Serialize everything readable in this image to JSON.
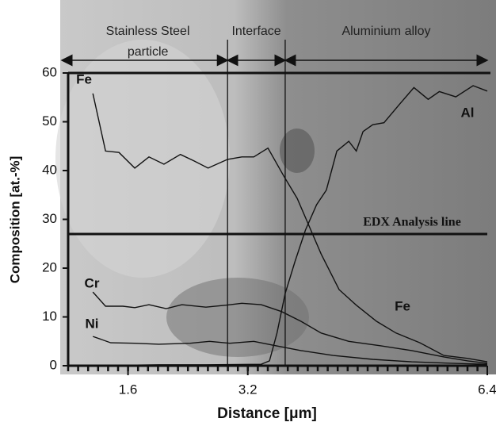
{
  "chart_data": {
    "type": "line",
    "ylabel": "Composition [at.-%]",
    "xlabel": "Distance [μm]",
    "xlim": [
      0.8,
      6.4
    ],
    "xticks": [
      1.6,
      3.2,
      6.4
    ],
    "ylim": [
      0,
      60
    ],
    "yticks": [
      0,
      10,
      20,
      30,
      40,
      50,
      60
    ],
    "regions": [
      {
        "label": [
          "Stainless Steel",
          "particle"
        ],
        "from": 0.8,
        "to": 2.93
      },
      {
        "label": [
          "Interface"
        ],
        "from": 2.93,
        "to": 3.7
      },
      {
        "label": [
          "Aluminium alloy"
        ],
        "from": 3.7,
        "to": 6.4
      }
    ],
    "analysis_line": {
      "label": "EDX Analysis line",
      "y": 27
    },
    "series": [
      {
        "name": "Fe",
        "color": "#111111",
        "x": [
          1.13,
          1.3,
          1.48,
          1.69,
          1.88,
          2.08,
          2.3,
          2.48,
          2.67,
          2.93,
          3.12,
          3.28,
          3.47,
          3.68,
          3.86,
          4.02,
          4.18,
          4.42,
          4.65,
          4.92,
          5.18,
          5.5,
          5.82,
          6.14,
          6.4
        ],
        "values": [
          55.8,
          44,
          43.7,
          40.5,
          42.8,
          41.3,
          43.3,
          42,
          40.5,
          42.3,
          42.8,
          42.8,
          44.6,
          38.9,
          34.3,
          28.6,
          22.9,
          15.6,
          12.4,
          9.1,
          6.7,
          4.7,
          2.1,
          1.5,
          0.8
        ]
      },
      {
        "name": "Al",
        "color": "#111111",
        "x": [
          1.13,
          2.01,
          2.64,
          3.38,
          3.49,
          3.59,
          3.7,
          3.83,
          3.97,
          4.12,
          4.25,
          4.39,
          4.55,
          4.65,
          4.74,
          4.87,
          5.02,
          5.24,
          5.42,
          5.61,
          5.76,
          5.98,
          6.21,
          6.4
        ],
        "values": [
          0,
          0.2,
          0.2,
          0.3,
          1,
          6.7,
          14.8,
          21.3,
          27.8,
          33,
          36,
          44,
          46,
          44,
          48,
          49.4,
          49.8,
          53.8,
          57,
          54.6,
          56.2,
          55.1,
          57.4,
          56.3
        ]
      },
      {
        "name": "Cr",
        "color": "#111111",
        "x": [
          1.13,
          1.3,
          1.53,
          1.69,
          1.88,
          2.11,
          2.32,
          2.64,
          2.91,
          3.12,
          3.38,
          3.65,
          3.91,
          4.18,
          4.55,
          4.97,
          5.39,
          5.82,
          6.14,
          6.4
        ],
        "values": [
          15.1,
          12.2,
          12.2,
          11.9,
          12.5,
          11.7,
          12.5,
          12,
          12.4,
          12.8,
          12.5,
          11.1,
          9.1,
          6.7,
          5,
          4.1,
          3.1,
          1.8,
          1,
          0.5
        ]
      },
      {
        "name": "Ni",
        "color": "#111111",
        "x": [
          1.13,
          1.37,
          1.69,
          2.01,
          2.43,
          2.69,
          2.96,
          3.28,
          3.54,
          3.91,
          4.34,
          4.87,
          5.39,
          5.92,
          6.4
        ],
        "values": [
          6,
          4.7,
          4.6,
          4.4,
          4.6,
          5,
          4.6,
          5,
          4.2,
          3.1,
          2.1,
          1.3,
          0.8,
          0.5,
          0.3
        ]
      }
    ]
  }
}
